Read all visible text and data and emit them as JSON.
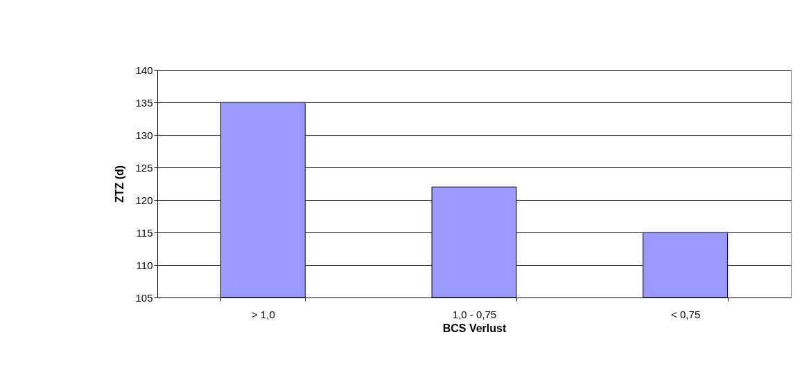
{
  "chart_data": {
    "type": "bar",
    "xlabel": "BCS Verlust",
    "ylabel": "ZTZ (d)",
    "categories": [
      "> 1,0",
      "1,0 - 0,75",
      "< 0,75"
    ],
    "values": [
      135,
      122,
      115
    ],
    "color": "#9999ff",
    "ylim": [
      105,
      140
    ],
    "yticks": [
      105,
      110,
      115,
      120,
      125,
      130,
      135,
      140
    ],
    "grid": "y"
  }
}
